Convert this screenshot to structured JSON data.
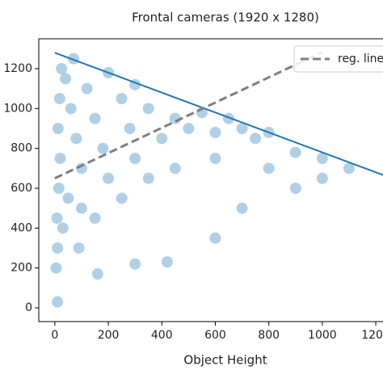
{
  "chart_data": {
    "type": "scatter",
    "title": "Frontal cameras (1920 x 1280)",
    "x_label": "Object Height",
    "xlim": [
      -60,
      1227
    ],
    "ylim": [
      -69,
      1350
    ],
    "xticks": [
      0,
      200,
      400,
      600,
      800,
      1000,
      1200
    ],
    "yticks": [
      0,
      200,
      400,
      600,
      800,
      1000,
      1200
    ],
    "series": [
      {
        "color": "#1f77b4",
        "x": [
          5,
          10,
          8,
          15,
          20,
          12,
          18,
          25,
          40,
          60,
          80,
          100,
          50,
          30,
          120,
          150,
          180,
          200,
          100,
          250,
          280,
          300,
          350,
          400,
          450,
          500,
          550,
          600,
          650,
          700,
          750,
          800,
          900,
          1000,
          1100,
          150,
          250,
          350,
          450,
          600,
          800,
          200,
          300,
          70,
          90,
          300,
          420,
          700,
          900,
          160,
          10,
          600,
          1000
        ],
        "values": [
          200,
          300,
          450,
          600,
          750,
          900,
          1050,
          1200,
          1150,
          1000,
          850,
          700,
          550,
          400,
          1100,
          950,
          800,
          650,
          500,
          1050,
          900,
          750,
          1000,
          850,
          950,
          900,
          980,
          880,
          950,
          900,
          850,
          880,
          780,
          750,
          700,
          450,
          550,
          650,
          700,
          750,
          700,
          1180,
          1120,
          1250,
          300,
          220,
          230,
          500,
          600,
          170,
          30,
          350,
          650
        ]
      }
    ],
    "lines": [
      {
        "color": "#1f77b4",
        "x": [
          0,
          1280
        ],
        "y": [
          1280,
          640
        ]
      },
      {
        "name": "reg. line",
        "color": "#7f7f7f",
        "x": [
          0,
          1000
        ],
        "y": [
          650,
          1283
        ]
      }
    ]
  }
}
